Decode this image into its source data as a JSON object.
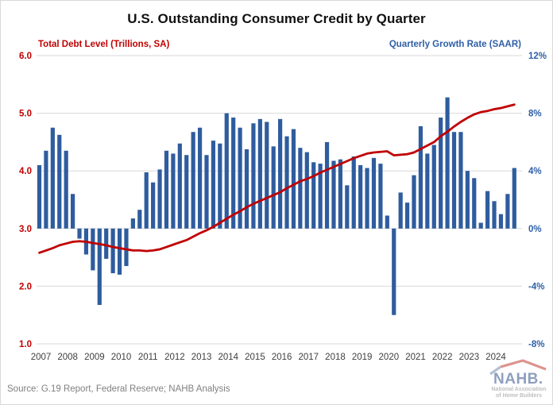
{
  "title": "U.S. Outstanding Consumer Credit by Quarter",
  "source_note": "Source: G.19 Report, Federal Reserve; NAHB Analysis",
  "logo": {
    "wordmark": "NAHB.",
    "subtitle_line1": "National Association",
    "subtitle_line2": "of Home Builders"
  },
  "colors": {
    "bar_blue": "#2F5C9E",
    "line_red": "#C00000",
    "left_axis_text": "#C00000",
    "right_axis_text": "#2E5FA7",
    "gridline": "#D9D9D9",
    "year_label": "#404040",
    "source_text": "#808080"
  },
  "chart_data": {
    "type": "combo",
    "title": "U.S. Outstanding Consumer Credit by Quarter",
    "categories": [
      "2007Q1",
      "2007Q2",
      "2007Q3",
      "2007Q4",
      "2008Q1",
      "2008Q2",
      "2008Q3",
      "2008Q4",
      "2009Q1",
      "2009Q2",
      "2009Q3",
      "2009Q4",
      "2010Q1",
      "2010Q2",
      "2010Q3",
      "2010Q4",
      "2011Q1",
      "2011Q2",
      "2011Q3",
      "2011Q4",
      "2012Q1",
      "2012Q2",
      "2012Q3",
      "2012Q4",
      "2013Q1",
      "2013Q2",
      "2013Q3",
      "2013Q4",
      "2014Q1",
      "2014Q2",
      "2014Q3",
      "2014Q4",
      "2015Q1",
      "2015Q2",
      "2015Q3",
      "2015Q4",
      "2016Q1",
      "2016Q2",
      "2016Q3",
      "2016Q4",
      "2017Q1",
      "2017Q2",
      "2017Q3",
      "2017Q4",
      "2018Q1",
      "2018Q2",
      "2018Q3",
      "2018Q4",
      "2019Q1",
      "2019Q2",
      "2019Q3",
      "2019Q4",
      "2020Q1",
      "2020Q2",
      "2020Q3",
      "2020Q4",
      "2021Q1",
      "2021Q2",
      "2021Q3",
      "2021Q4",
      "2022Q1",
      "2022Q2",
      "2022Q3",
      "2022Q4",
      "2023Q1",
      "2023Q2",
      "2023Q3",
      "2023Q4",
      "2024Q1",
      "2024Q2",
      "2024Q3",
      "2024Q4"
    ],
    "year_labels": [
      "2007",
      "2008",
      "2009",
      "2010",
      "2011",
      "2012",
      "2013",
      "2014",
      "2015",
      "2016",
      "2017",
      "2018",
      "2019",
      "2020",
      "2021",
      "2022",
      "2023",
      "2024"
    ],
    "series": [
      {
        "name": "Total Debt Level (Trillions, SA)",
        "type": "line",
        "axis": "left",
        "color": "#C00000",
        "values": [
          2.58,
          2.62,
          2.66,
          2.71,
          2.74,
          2.77,
          2.78,
          2.77,
          2.75,
          2.73,
          2.71,
          2.68,
          2.66,
          2.64,
          2.62,
          2.62,
          2.61,
          2.62,
          2.64,
          2.68,
          2.72,
          2.76,
          2.8,
          2.86,
          2.92,
          2.97,
          3.03,
          3.1,
          3.17,
          3.24,
          3.3,
          3.37,
          3.43,
          3.48,
          3.53,
          3.58,
          3.63,
          3.7,
          3.76,
          3.82,
          3.86,
          3.91,
          3.97,
          4.02,
          4.07,
          4.12,
          4.17,
          4.22,
          4.26,
          4.3,
          4.32,
          4.33,
          4.34,
          4.27,
          4.28,
          4.29,
          4.32,
          4.38,
          4.44,
          4.5,
          4.6,
          4.68,
          4.77,
          4.85,
          4.92,
          4.98,
          5.02,
          5.04,
          5.07,
          5.09,
          5.12,
          5.15
        ]
      },
      {
        "name": "Quarterly Growth Rate (SAAR)",
        "type": "bar",
        "axis": "right",
        "color": "#2F5C9E",
        "values": [
          4.4,
          5.4,
          7.0,
          6.5,
          5.4,
          2.4,
          -0.7,
          -1.8,
          -2.9,
          -5.3,
          -2.1,
          -3.1,
          -3.2,
          -2.6,
          0.7,
          1.3,
          3.9,
          3.2,
          4.1,
          5.4,
          5.2,
          5.9,
          5.1,
          6.7,
          7.0,
          5.1,
          6.1,
          5.9,
          8.0,
          7.7,
          7.0,
          5.5,
          7.3,
          7.6,
          7.4,
          5.7,
          7.6,
          6.4,
          6.9,
          5.6,
          5.3,
          4.6,
          4.5,
          6.0,
          4.7,
          4.8,
          3.0,
          5.0,
          4.4,
          4.2,
          4.9,
          4.5,
          0.9,
          -6.0,
          2.5,
          1.8,
          3.7,
          7.1,
          5.2,
          5.8,
          7.7,
          9.1,
          6.7,
          6.7,
          4.0,
          3.5,
          0.4,
          2.6,
          1.9,
          1.0,
          2.4,
          4.2
        ]
      }
    ],
    "left_axis": {
      "label": "Total Debt Level (Trillions, SA)",
      "min": 1.0,
      "max": 6.0,
      "ticks": [
        "6.0",
        "5.0",
        "4.0",
        "3.0",
        "2.0",
        "1.0"
      ]
    },
    "right_axis": {
      "label": "Quarterly Growth Rate (SAAR)",
      "min": -8,
      "max": 12,
      "ticks": [
        "12%",
        "8%",
        "4%",
        "0%",
        "-4%",
        "-8%"
      ]
    },
    "grid": true,
    "legend_position": "top"
  }
}
